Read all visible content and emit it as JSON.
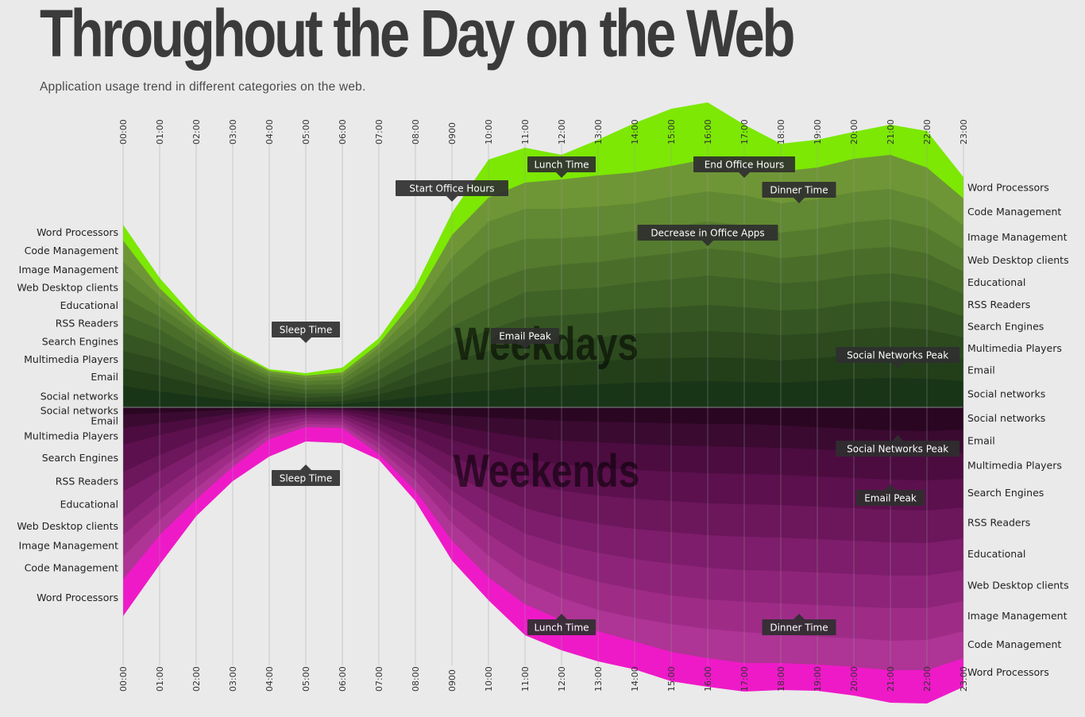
{
  "title": "Throughout the Day on the Web",
  "subtitle": "Application usage trend in different categories on the web.",
  "chart_data": {
    "type": "area",
    "hours": [
      "00:00",
      "01:00",
      "02:00",
      "03:00",
      "04:00",
      "05:00",
      "06:00",
      "07:00",
      "08:00",
      "0900",
      "10:00",
      "11:00",
      "12:00",
      "13:00",
      "14:00",
      "15:00",
      "16:00",
      "17:00",
      "18:00",
      "19:00",
      "20:00",
      "21:00",
      "22:00",
      "23:00"
    ],
    "categories": [
      "Social networks",
      "Email",
      "Multimedia Players",
      "Search Engines",
      "RSS Readers",
      "Educational",
      "Web Desktop clients",
      "Image Management",
      "Code Management",
      "Word Processors"
    ],
    "weekdays": {
      "label": "Weekdays",
      "colors": [
        "#183518",
        "#223f1a",
        "#2c4a1e",
        "#355622",
        "#3f6226",
        "#4a6e2a",
        "#557b2e",
        "#618832",
        "#6f9636",
        "#7ce804"
      ],
      "cumulative": [
        [
          27,
          49,
          71,
          94,
          117,
          139,
          162,
          184,
          210,
          230
        ],
        [
          20,
          40,
          60,
          79,
          98,
          114,
          127,
          140,
          150,
          163
        ],
        [
          14,
          29,
          43,
          58,
          71,
          84,
          94,
          101,
          106,
          111
        ],
        [
          9,
          18,
          28,
          38,
          47,
          56,
          62,
          67,
          70,
          73
        ],
        [
          5,
          10,
          16,
          23,
          29,
          35,
          39,
          43,
          46,
          48
        ],
        [
          3,
          7,
          12,
          17,
          22,
          28,
          33,
          37,
          40,
          43
        ],
        [
          4,
          8,
          14,
          18,
          23,
          29,
          35,
          40,
          44,
          50
        ],
        [
          8,
          16,
          24,
          35,
          46,
          57,
          67,
          75,
          80,
          87
        ],
        [
          13,
          28,
          43,
          59,
          74,
          89,
          105,
          121,
          137,
          152
        ],
        [
          18,
          38,
          58,
          80,
          102,
          131,
          160,
          189,
          217,
          245
        ],
        [
          21,
          44,
          71,
          97,
          124,
          157,
          198,
          234,
          264,
          312
        ],
        [
          25,
          53,
          84,
          113,
          145,
          174,
          212,
          250,
          283,
          327
        ],
        [
          27,
          55,
          84,
          116,
          148,
          180,
          213,
          250,
          287,
          318
        ],
        [
          29,
          58,
          88,
          119,
          151,
          183,
          216,
          253,
          292,
          337
        ],
        [
          31,
          61,
          93,
          124,
          157,
          189,
          222,
          257,
          296,
          358
        ],
        [
          32,
          62,
          94,
          126,
          161,
          194,
          227,
          265,
          304,
          376
        ],
        [
          33,
          63,
          96,
          129,
          166,
          200,
          234,
          272,
          313,
          384
        ],
        [
          32,
          62,
          94,
          126,
          162,
          196,
          229,
          267,
          307,
          356
        ],
        [
          31,
          59,
          91,
          122,
          156,
          188,
          220,
          257,
          297,
          332
        ],
        [
          33,
          62,
          93,
          124,
          159,
          192,
          225,
          262,
          302,
          337
        ],
        [
          36,
          66,
          98,
          131,
          166,
          199,
          233,
          271,
          313,
          347
        ],
        [
          37,
          68,
          101,
          134,
          169,
          202,
          237,
          275,
          318,
          356
        ],
        [
          36,
          67,
          98,
          129,
          162,
          194,
          226,
          262,
          302,
          348
        ],
        [
          33,
          60,
          88,
          115,
          143,
          171,
          199,
          229,
          263,
          290
        ]
      ]
    },
    "weekends": {
      "label": "Weekends",
      "colors": [
        "#2b0622",
        "#3a0a31",
        "#4c0c40",
        "#5c104e",
        "#6c165c",
        "#7d1d6b",
        "#8e2479",
        "#9e2c87",
        "#ae3495",
        "#ee1ac8"
      ],
      "cumulative": [
        [
          9,
          26,
          47,
          81,
          106,
          139,
          161,
          188,
          217,
          263
        ],
        [
          7,
          20,
          35,
          60,
          80,
          103,
          122,
          142,
          161,
          198
        ],
        [
          5,
          14,
          24,
          41,
          55,
          72,
          87,
          102,
          116,
          137
        ],
        [
          3,
          8,
          14,
          25,
          34,
          45,
          56,
          66,
          75,
          93
        ],
        [
          1,
          3,
          6,
          10,
          15,
          21,
          27,
          34,
          40,
          62
        ],
        [
          1,
          2,
          3,
          6,
          9,
          13,
          17,
          21,
          25,
          43
        ],
        [
          1,
          2,
          4,
          7,
          10,
          14,
          18,
          22,
          26,
          45
        ],
        [
          3,
          7,
          13,
          20,
          28,
          36,
          44,
          52,
          59,
          66
        ],
        [
          6,
          14,
          25,
          39,
          53,
          66,
          79,
          92,
          105,
          118
        ],
        [
          10,
          23,
          41,
          62,
          84,
          105,
          125,
          146,
          168,
          193
        ],
        [
          13,
          31,
          54,
          80,
          107,
          134,
          160,
          187,
          214,
          243
        ],
        [
          15,
          38,
          65,
          96,
          127,
          159,
          190,
          220,
          248,
          287
        ],
        [
          17,
          42,
          72,
          105,
          139,
          173,
          207,
          240,
          268,
          306
        ],
        [
          18,
          44,
          76,
          111,
          147,
          183,
          220,
          255,
          282,
          320
        ],
        [
          19,
          46,
          79,
          115,
          153,
          191,
          229,
          265,
          295,
          330
        ],
        [
          20,
          48,
          81,
          118,
          157,
          197,
          237,
          273,
          308,
          345
        ],
        [
          21,
          49,
          83,
          121,
          161,
          202,
          242,
          279,
          316,
          352
        ],
        [
          21,
          50,
          84,
          122,
          163,
          205,
          245,
          283,
          322,
          358
        ],
        [
          23,
          51,
          85,
          123,
          164,
          206,
          247,
          286,
          322,
          356
        ],
        [
          25,
          53,
          87,
          125,
          166,
          208,
          249,
          289,
          324,
          357
        ],
        [
          27,
          55,
          89,
          127,
          168,
          210,
          251,
          291,
          327,
          363
        ],
        [
          29,
          58,
          91,
          129,
          170,
          212,
          253,
          294,
          331,
          372
        ],
        [
          30,
          59,
          92,
          130,
          171,
          212,
          253,
          293,
          331,
          373
        ],
        [
          28,
          57,
          90,
          126,
          165,
          205,
          244,
          282,
          316,
          352
        ]
      ]
    },
    "annotations_weekdays": [
      {
        "text": "Sleep Time",
        "hour": 5,
        "value": 81
      },
      {
        "text": "Start Office Hours",
        "hour": 9,
        "value": 259
      },
      {
        "text": "Lunch Time",
        "hour": 12,
        "value": 289
      },
      {
        "text": "End Office Hours",
        "hour": 17,
        "value": 289
      },
      {
        "text": "Dinner Time",
        "hour": 18.5,
        "value": 257
      },
      {
        "text": "Decrease in Office Apps",
        "hour": 16,
        "value": 203
      },
      {
        "text": "Email Peak",
        "hour": 11,
        "value": 73
      },
      {
        "text": "Social Networks Peak",
        "hour": 21.2,
        "value": 49
      }
    ],
    "annotations_weekends": [
      {
        "text": "Sleep Time",
        "hour": 5,
        "value": 72
      },
      {
        "text": "Social Networks Peak",
        "hour": 21.2,
        "value": 35
      },
      {
        "text": "Email Peak",
        "hour": 21,
        "value": 97
      },
      {
        "text": "Lunch Time",
        "hour": 12,
        "value": 260
      },
      {
        "text": "Dinner Time",
        "hour": 18.5,
        "value": 260
      }
    ]
  }
}
